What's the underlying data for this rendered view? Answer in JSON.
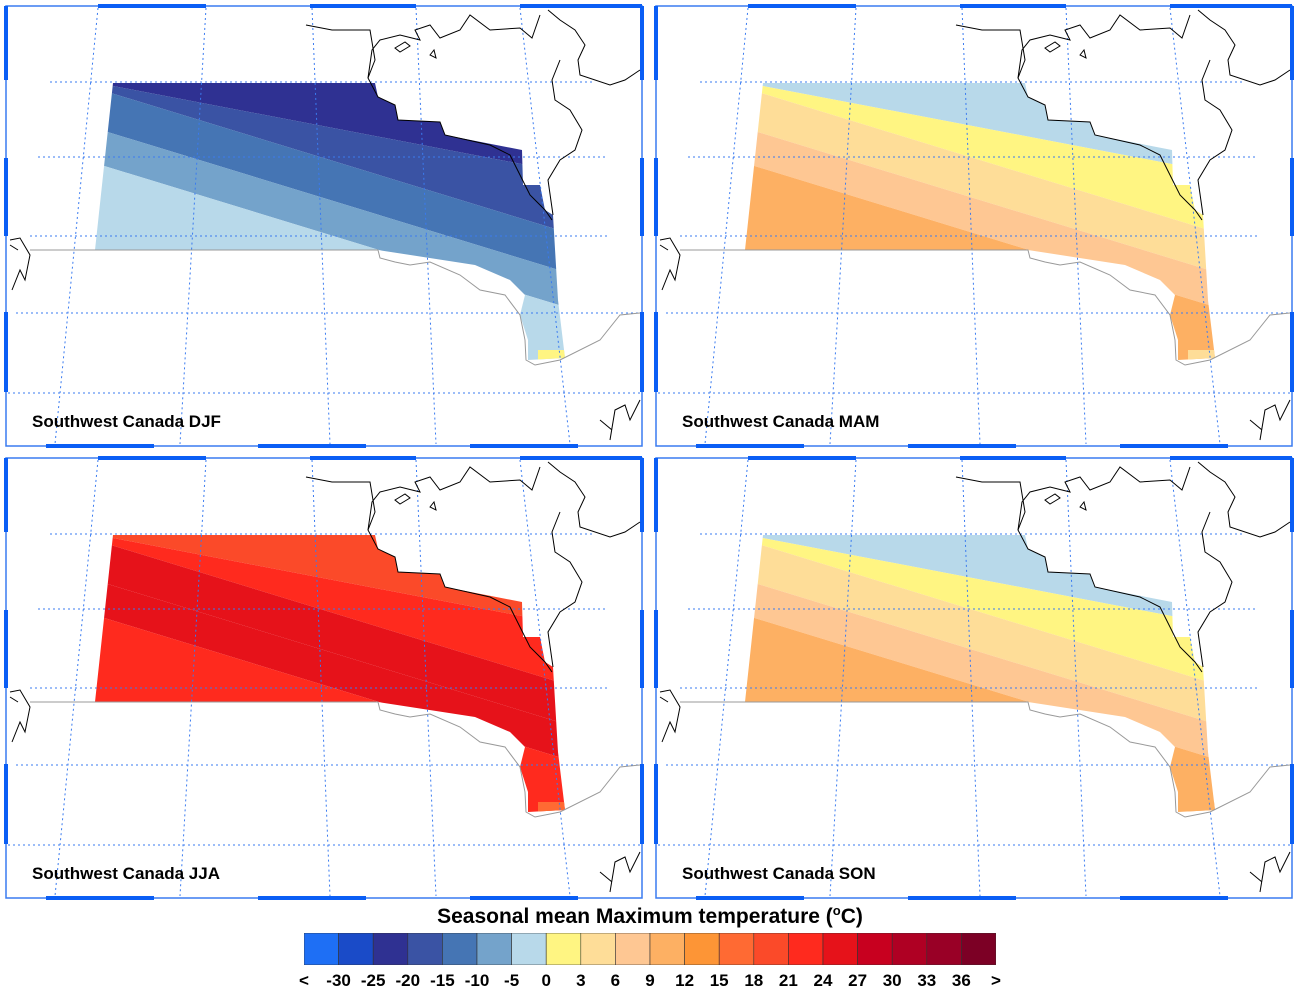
{
  "panels": [
    {
      "title": "Southwest Canada DJF",
      "bands": [
        -25,
        -20,
        -15,
        -10,
        -5
      ],
      "spot": 0
    },
    {
      "title": "Southwest Canada MAM",
      "bands": [
        -5,
        0,
        3,
        6,
        9
      ],
      "spot": 3
    },
    {
      "title": "Southwest Canada JJA",
      "bands": [
        18,
        21,
        24,
        24,
        21
      ],
      "spot": 15
    },
    {
      "title": "Southwest Canada SON",
      "bands": [
        -5,
        0,
        3,
        6,
        9
      ],
      "spot": 9
    }
  ],
  "colorbar": {
    "title": "Seasonal mean Maximum temperature (",
    "unit_sup": "o",
    "unit": "C)",
    "labels": [
      "<",
      "-30",
      "-25",
      "-20",
      "-15",
      "-10",
      "-5",
      "0",
      "3",
      "6",
      "9",
      "12",
      "15",
      "18",
      "21",
      "24",
      "27",
      "30",
      "33",
      "36",
      ">"
    ],
    "levels": [
      -30,
      -25,
      -20,
      -15,
      -10,
      -5,
      0,
      3,
      6,
      9,
      12,
      15,
      18,
      21,
      24,
      27,
      30,
      33,
      36
    ],
    "colors": [
      "#1e6ff5",
      "#1a4bc8",
      "#2f3192",
      "#3a53a4",
      "#4575b4",
      "#74a3cb",
      "#b8d9ea",
      "#fff582",
      "#fedd98",
      "#fec793",
      "#fdb063",
      "#fd9536",
      "#ff6a33",
      "#fb4a29",
      "#ff2a1e",
      "#e6121a",
      "#c8001f",
      "#af0023",
      "#990026",
      "#7c0025"
    ]
  }
}
